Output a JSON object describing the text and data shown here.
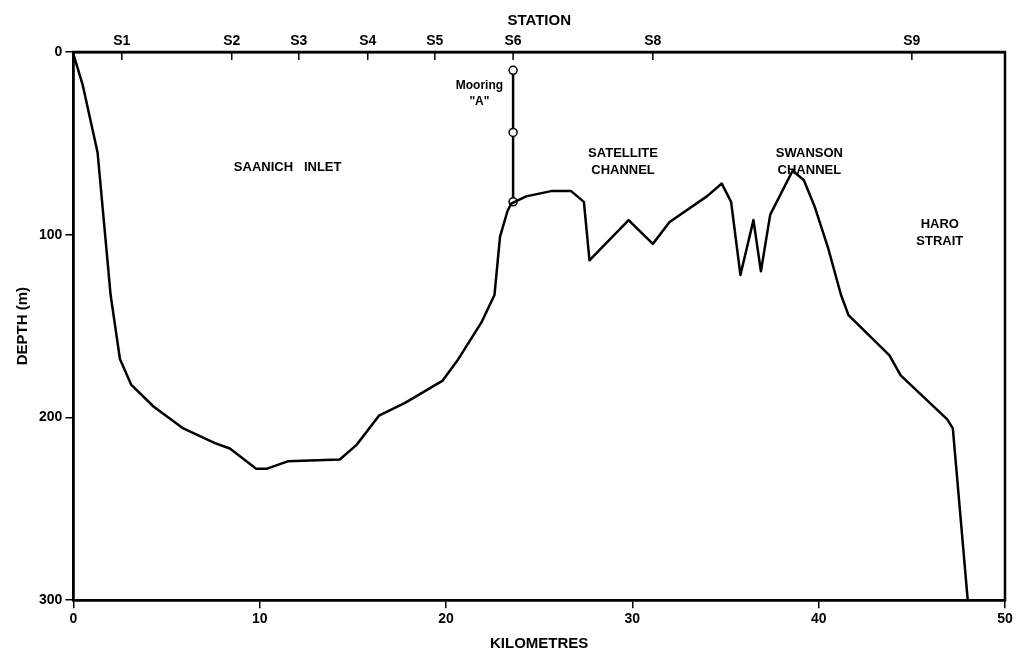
{
  "chart_data": {
    "type": "line",
    "xlabel": "KILOMETRES",
    "ylabel": "DEPTH (m)",
    "x2label": "STATION",
    "xlim": [
      0,
      50
    ],
    "xticks": [
      0,
      10,
      20,
      30,
      40,
      50
    ],
    "ylim": [
      300,
      0
    ],
    "yticks": [
      0,
      100,
      200,
      300
    ],
    "ref_lines": [
      {
        "axis": "x",
        "value": 2.6,
        "label": "S1"
      },
      {
        "axis": "x",
        "value": 8.5,
        "label": "S2"
      },
      {
        "axis": "x",
        "value": 12.1,
        "label": "S3"
      },
      {
        "axis": "x",
        "value": 15.8,
        "label": "S4"
      },
      {
        "axis": "x",
        "value": 19.4,
        "label": "S5"
      },
      {
        "axis": "x",
        "value": 23.6,
        "label": "S6"
      },
      {
        "axis": "x",
        "value": 31.1,
        "label": "S8"
      },
      {
        "axis": "x",
        "value": 45.0,
        "label": "S9"
      }
    ],
    "grid": false,
    "legend": false,
    "series": [
      {
        "color": "#000000",
        "marker": "none",
        "x": [
          0,
          0.5,
          1.3,
          2.0,
          2.5,
          3.1,
          4.3,
          5.9,
          7.6,
          8.4,
          9.8,
          10.4,
          11.5,
          14.3,
          15.2,
          16.4,
          17.8,
          19.8,
          20.6,
          21.9,
          22.6,
          22.9,
          23.3,
          23.5,
          24.3,
          25.7,
          26.7,
          27.4,
          27.7,
          29.8,
          31.1,
          32.0,
          34.0,
          34.8,
          35.3,
          35.8,
          36.5,
          36.9,
          37.4,
          38.6,
          39.2,
          39.8,
          40.5,
          41.2,
          41.6,
          43.8,
          44.4,
          46.9,
          47.2,
          48.0
        ],
        "values": [
          1,
          18,
          55,
          133,
          168,
          182,
          194,
          206,
          214,
          217,
          228,
          228,
          224,
          223,
          215,
          199,
          192,
          180,
          169,
          148,
          133,
          101,
          87,
          83,
          79,
          76,
          76,
          82,
          114,
          92,
          105,
          93,
          79,
          72,
          82,
          122,
          92,
          120,
          89,
          65,
          70,
          85,
          107,
          133,
          144,
          166,
          177,
          201,
          206,
          300
        ]
      },
      {
        "name": "Mooring \"A\"",
        "color": "#000000",
        "marker": "circle",
        "x": [
          23.6,
          23.6,
          23.6
        ],
        "values": [
          10,
          44,
          82
        ]
      }
    ],
    "annotations": [
      "SAANICH   INLET",
      "SATELLITE\nCHANNEL",
      "SWANSON\nCHANNEL",
      "HARO\nSTRAIT"
    ]
  }
}
